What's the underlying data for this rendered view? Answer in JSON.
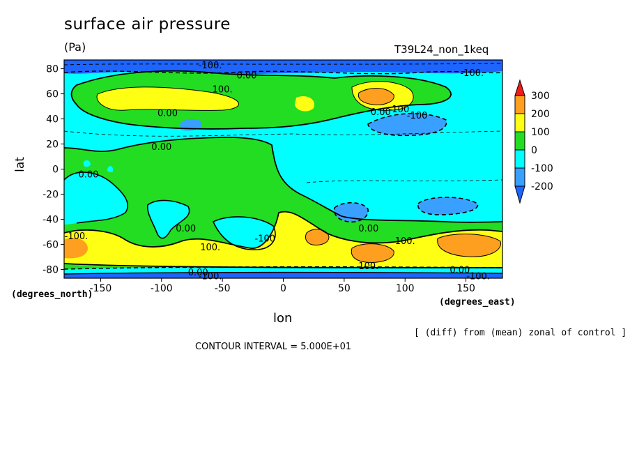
{
  "chart_data": {
    "type": "contour",
    "title": "surface air pressure",
    "units": "(Pa)",
    "run_id": "T39L24_non_1keq",
    "xlabel": "lon",
    "ylabel": "lat",
    "x_caption": "(degrees_east)",
    "y_caption": "(degrees_north)",
    "note": "[ (diff) from (mean) zonal of control ]",
    "contour_interval": "CONTOUR INTERVAL = 5.000E+01",
    "xlim": [
      -180,
      180
    ],
    "ylim": [
      -87,
      87
    ],
    "x_ticks": [
      -150,
      -100,
      -50,
      0,
      50,
      100,
      150
    ],
    "y_ticks": [
      80,
      60,
      40,
      20,
      0,
      -20,
      -40,
      -60,
      -80
    ],
    "colorbar": {
      "levels": [
        300,
        200,
        100,
        0,
        -100,
        -200
      ],
      "bands": [
        {
          "range": "above 300",
          "color": "#ee1c1c"
        },
        {
          "range": "200 to 300",
          "color": "#ff9f1f"
        },
        {
          "range": "100 to 200",
          "color": "#ffff14"
        },
        {
          "range": "0 to 100",
          "color": "#22dd22"
        },
        {
          "range": "-100 to 0",
          "color": "#00ffff"
        },
        {
          "range": "-200 to -100",
          "color": "#3aa0ff"
        },
        {
          "range": "below -200",
          "color": "#1e64ff"
        }
      ]
    },
    "contour_labels": [
      {
        "text": "-100.",
        "lon": -60,
        "lat": 83
      },
      {
        "text": "0.00",
        "lon": -30,
        "lat": 75
      },
      {
        "text": "-100.",
        "lon": 155,
        "lat": 77
      },
      {
        "text": "100.",
        "lon": -50,
        "lat": 64
      },
      {
        "text": "0.00",
        "lon": -95,
        "lat": 45
      },
      {
        "text": "0.00",
        "lon": 80,
        "lat": 46
      },
      {
        "text": "-100",
        "lon": 95,
        "lat": 48
      },
      {
        "text": "-100",
        "lon": 110,
        "lat": 43
      },
      {
        "text": "0.00",
        "lon": -100,
        "lat": 18
      },
      {
        "text": "0.00",
        "lon": -160,
        "lat": -4
      },
      {
        "text": "0.00",
        "lon": -80,
        "lat": -47
      },
      {
        "text": "-100",
        "lon": -15,
        "lat": -55
      },
      {
        "text": "0.00",
        "lon": 70,
        "lat": -47
      },
      {
        "text": "100.",
        "lon": 100,
        "lat": -57
      },
      {
        "text": "-100.",
        "lon": -170,
        "lat": -53
      },
      {
        "text": "100.",
        "lon": -60,
        "lat": -62
      },
      {
        "text": "100.",
        "lon": 70,
        "lat": -77
      },
      {
        "text": "0.00",
        "lon": -70,
        "lat": -82
      },
      {
        "text": "-100.",
        "lon": -60,
        "lat": -85
      },
      {
        "text": "0.00",
        "lon": 145,
        "lat": -80
      },
      {
        "text": "-100.",
        "lon": 160,
        "lat": -85
      }
    ]
  }
}
